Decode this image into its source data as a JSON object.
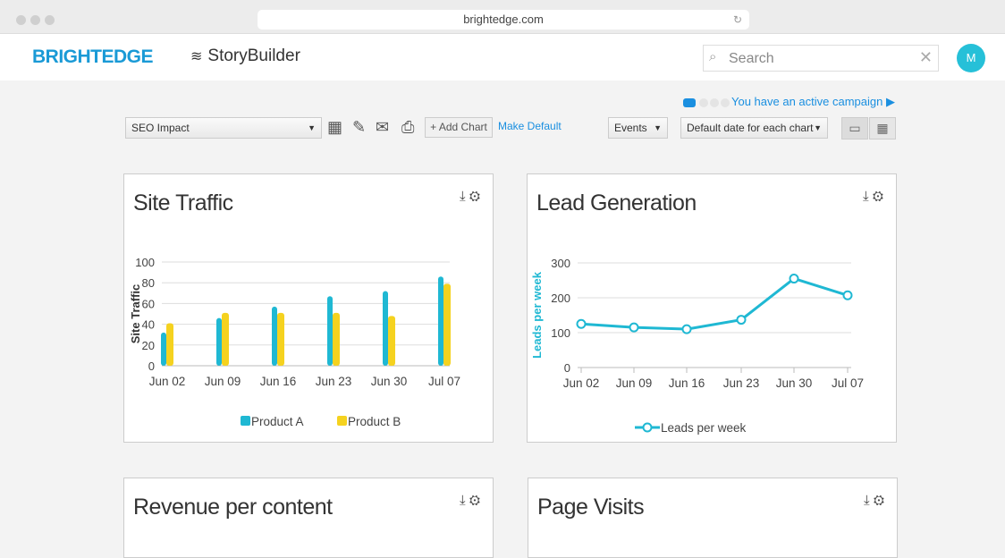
{
  "browser": {
    "url": "brightedge.com"
  },
  "header": {
    "logo": "BRIGHTEDGE",
    "app": "StoryBuilder",
    "search_placeholder": "Search",
    "avatar": "M"
  },
  "campaign": {
    "text": "You have an active campaign ▶"
  },
  "toolbar": {
    "dashboard": "SEO Impact",
    "add_chart": "+ Add Chart",
    "make_default": "Make Default",
    "events": "Events",
    "date": "Default date for each chart"
  },
  "colors": {
    "accent": "#1a9ad6",
    "teal": "#1fb8d3",
    "yellow": "#f5d21f"
  },
  "cards": [
    {
      "title": "Site Traffic"
    },
    {
      "title": "Lead Generation"
    },
    {
      "title": "Revenue per content"
    },
    {
      "title": "Page Visits"
    }
  ],
  "chart_data": [
    {
      "type": "bar",
      "title": "Site Traffic",
      "ylabel": "Site Traffic",
      "xlabel": "",
      "categories": [
        "Jun 02",
        "Jun 09",
        "Jun 16",
        "Jun 23",
        "Jun 30",
        "Jul 07"
      ],
      "ylim": [
        0,
        100
      ],
      "yticks": [
        0,
        20,
        40,
        60,
        80,
        100
      ],
      "grid": true,
      "legend": "bottom",
      "series": [
        {
          "name": "Product A",
          "color": "#1fb8d3",
          "values": [
            32,
            46,
            57,
            67,
            72,
            86
          ]
        },
        {
          "name": "Product B",
          "color": "#f5d21f",
          "values": [
            41,
            51,
            51,
            51,
            48,
            79
          ]
        }
      ]
    },
    {
      "type": "line",
      "title": "Lead Generation",
      "ylabel": "Leads per week",
      "xlabel": "",
      "categories": [
        "Jun 02",
        "Jun 09",
        "Jun 16",
        "Jun 23",
        "Jun 30",
        "Jul 07"
      ],
      "ylim": [
        0,
        300
      ],
      "yticks": [
        0,
        100,
        200,
        300
      ],
      "grid": true,
      "legend": "bottom",
      "series": [
        {
          "name": "Leads per week",
          "color": "#1fb8d3",
          "values": [
            125,
            115,
            110,
            137,
            255,
            207
          ]
        }
      ]
    }
  ]
}
